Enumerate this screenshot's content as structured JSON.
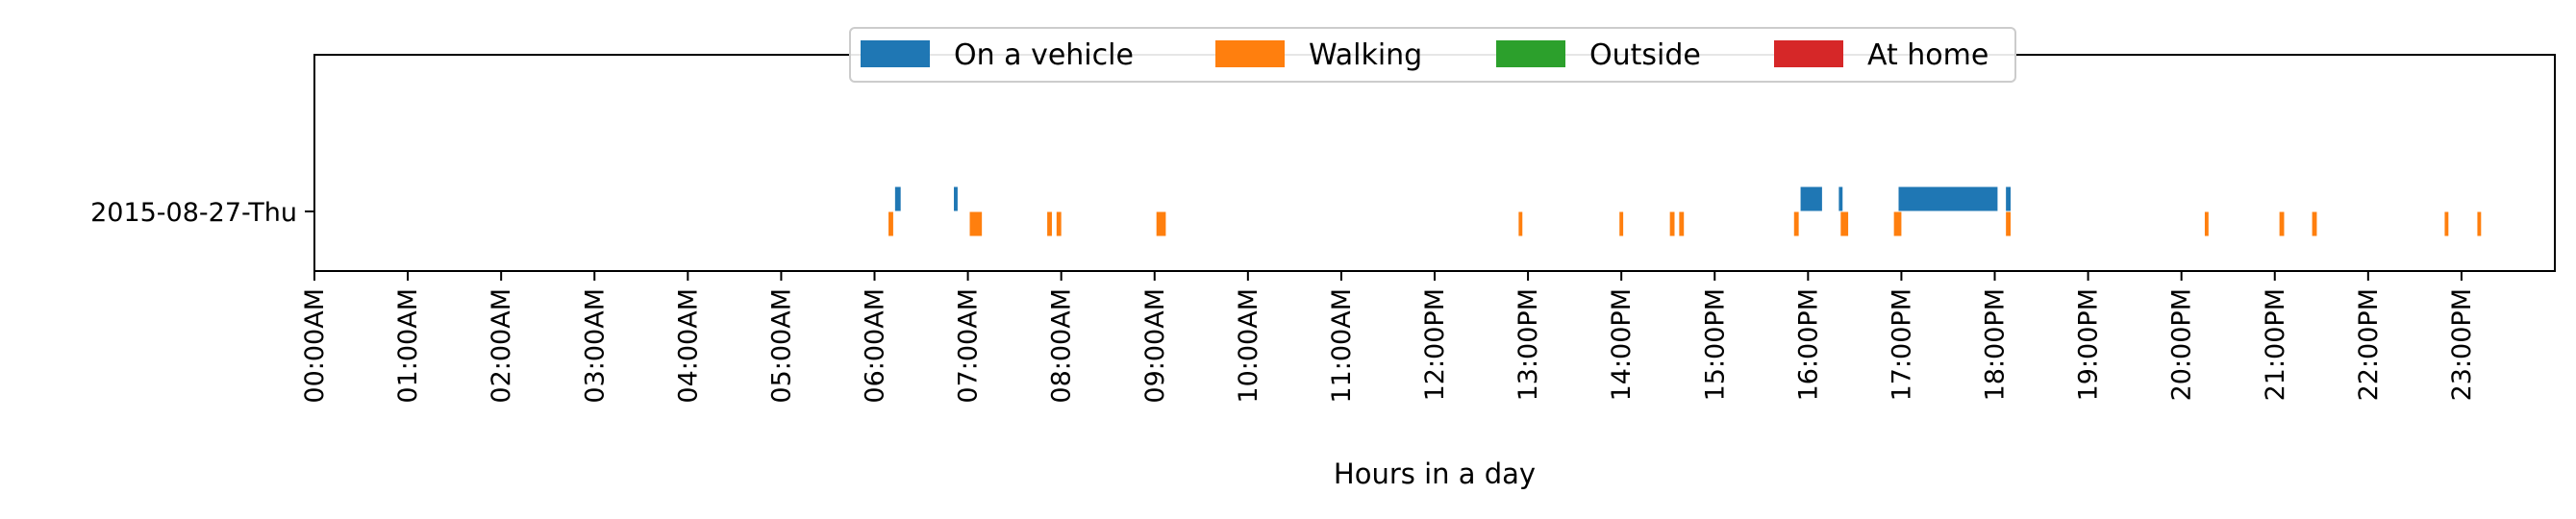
{
  "chart_data": {
    "type": "timeline",
    "xlabel": "Hours in a day",
    "ylabel": "",
    "xlim": [
      0,
      24
    ],
    "x_ticks": [
      {
        "value": 0,
        "label": "00:00AM"
      },
      {
        "value": 1,
        "label": "01:00AM"
      },
      {
        "value": 2,
        "label": "02:00AM"
      },
      {
        "value": 3,
        "label": "03:00AM"
      },
      {
        "value": 4,
        "label": "04:00AM"
      },
      {
        "value": 5,
        "label": "05:00AM"
      },
      {
        "value": 6,
        "label": "06:00AM"
      },
      {
        "value": 7,
        "label": "07:00AM"
      },
      {
        "value": 8,
        "label": "08:00AM"
      },
      {
        "value": 9,
        "label": "09:00AM"
      },
      {
        "value": 10,
        "label": "10:00AM"
      },
      {
        "value": 11,
        "label": "11:00AM"
      },
      {
        "value": 12,
        "label": "12:00PM"
      },
      {
        "value": 13,
        "label": "13:00PM"
      },
      {
        "value": 14,
        "label": "14:00PM"
      },
      {
        "value": 15,
        "label": "15:00PM"
      },
      {
        "value": 16,
        "label": "16:00PM"
      },
      {
        "value": 17,
        "label": "17:00PM"
      },
      {
        "value": 18,
        "label": "18:00PM"
      },
      {
        "value": 19,
        "label": "19:00PM"
      },
      {
        "value": 20,
        "label": "20:00PM"
      },
      {
        "value": 21,
        "label": "21:00PM"
      },
      {
        "value": 22,
        "label": "22:00PM"
      },
      {
        "value": 23,
        "label": "23:00PM"
      }
    ],
    "rows": [
      "2015-08-27-Thu"
    ],
    "legend": {
      "placement": "upper-center",
      "columns": 4
    },
    "grid": false,
    "series": [
      {
        "name": "On a vehicle",
        "color": "#1f77b4",
        "row_offset": -1,
        "intervals": [
          [
            6.22,
            6.28
          ],
          [
            6.85,
            6.89
          ],
          [
            15.92,
            16.15
          ],
          [
            16.33,
            16.37
          ],
          [
            16.97,
            18.03
          ],
          [
            18.12,
            18.17
          ]
        ]
      },
      {
        "name": "Walking",
        "color": "#ff7f0e",
        "row_offset": 1,
        "intervals": [
          [
            6.15,
            6.2
          ],
          [
            7.02,
            7.15
          ],
          [
            7.85,
            7.9
          ],
          [
            7.95,
            8.0
          ],
          [
            9.02,
            9.12
          ],
          [
            12.9,
            12.94
          ],
          [
            13.98,
            14.02
          ],
          [
            14.52,
            14.57
          ],
          [
            14.62,
            14.67
          ],
          [
            15.85,
            15.9
          ],
          [
            16.35,
            16.43
          ],
          [
            16.92,
            17.0
          ],
          [
            18.12,
            18.17
          ],
          [
            20.25,
            20.29
          ],
          [
            21.05,
            21.1
          ],
          [
            21.4,
            21.45
          ],
          [
            22.82,
            22.86
          ],
          [
            23.17,
            23.21
          ]
        ]
      },
      {
        "name": "Outside",
        "color": "#2ca02c",
        "row_offset": 0,
        "intervals": []
      },
      {
        "name": "At home",
        "color": "#d62728",
        "row_offset": 0,
        "intervals": []
      }
    ]
  }
}
